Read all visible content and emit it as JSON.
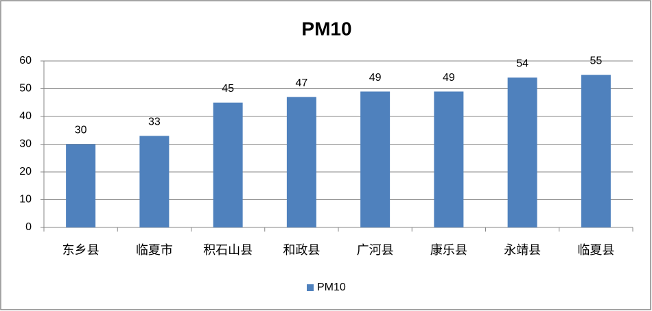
{
  "chart_data": {
    "type": "bar",
    "title": "PM10",
    "categories": [
      "东乡县",
      "临夏市",
      "积石山县",
      "和政县",
      "广河县",
      "康乐县",
      "永靖县",
      "临夏县"
    ],
    "series": [
      {
        "name": "PM10",
        "color": "#4f81bd",
        "values": [
          30,
          33,
          45,
          47,
          49,
          49,
          54,
          55
        ]
      }
    ],
    "ylim": [
      0,
      60
    ],
    "yticks": [
      0,
      10,
      20,
      30,
      40,
      50,
      60
    ],
    "grid": true,
    "legend": "bottom"
  }
}
